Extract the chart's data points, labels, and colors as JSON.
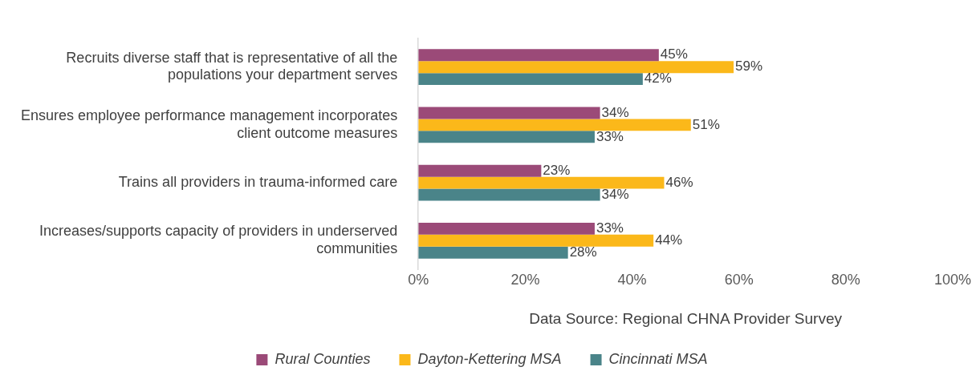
{
  "chart_data": {
    "type": "bar",
    "orientation": "horizontal",
    "categories": [
      "Recruits diverse staff that is representative of all the populations your department serves",
      "Ensures employee performance management incorporates client outcome measures",
      "Trains all providers in trauma-informed care",
      "Increases/supports capacity of providers in underserved communities"
    ],
    "series": [
      {
        "name": "Rural Counties",
        "color": "#9b4a78",
        "values": [
          45,
          34,
          23,
          33
        ],
        "value_labels": [
          "45%",
          "34%",
          "23%",
          "33%"
        ]
      },
      {
        "name": "Dayton-Kettering MSA",
        "color": "#fbb81a",
        "values": [
          59,
          51,
          46,
          44
        ],
        "value_labels": [
          "59%",
          "51%",
          "46%",
          "44%"
        ]
      },
      {
        "name": "Cincinnati MSA",
        "color": "#4a8489",
        "values": [
          42,
          33,
          34,
          28
        ],
        "value_labels": [
          "42%",
          "33%",
          "34%",
          "28%"
        ]
      }
    ],
    "xlim": [
      0,
      100
    ],
    "xticks": [
      {
        "value": 0,
        "label": "0%"
      },
      {
        "value": 20,
        "label": "20%"
      },
      {
        "value": 40,
        "label": "40%"
      },
      {
        "value": 60,
        "label": "60%"
      },
      {
        "value": 80,
        "label": "80%"
      },
      {
        "value": 100,
        "label": "100%"
      }
    ],
    "grid": false,
    "legend": "bottom",
    "annotations": [
      "Data Source: Regional CHNA Provider Survey"
    ]
  }
}
